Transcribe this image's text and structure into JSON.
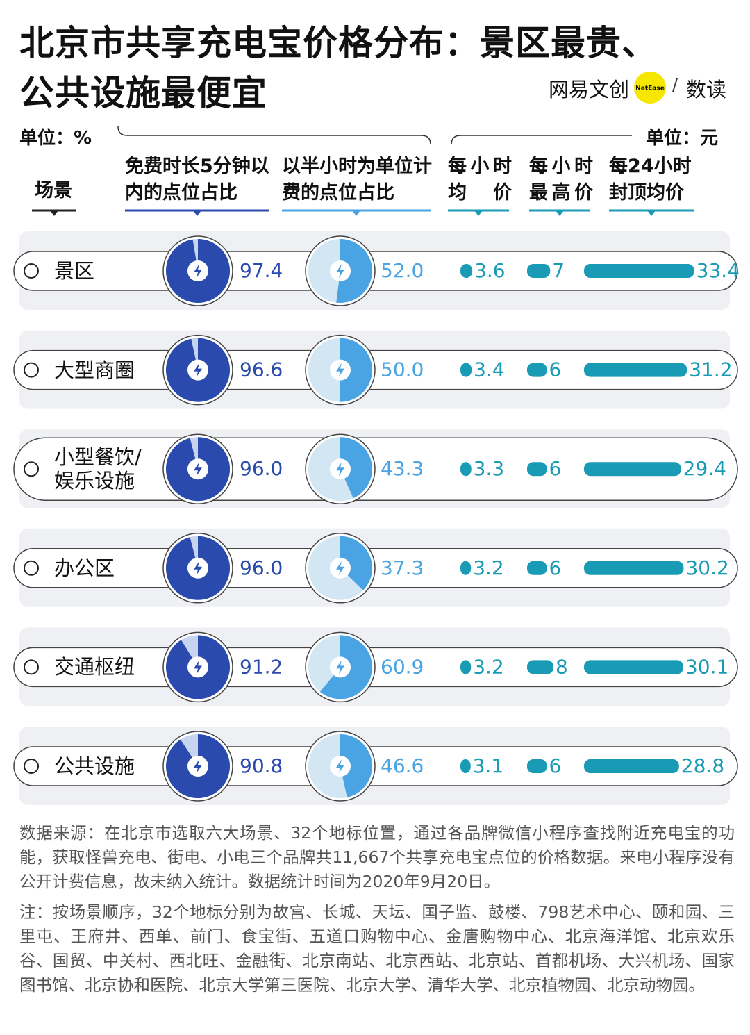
{
  "title": [
    "北京市共享充电宝价格分布：景区最贵、",
    "公共设施最便宜"
  ],
  "logo": {
    "left": "网易文创",
    "badge": "NetEase",
    "separator": "/",
    "right": "数读"
  },
  "chart_data": {
    "type": "pie-bar-table",
    "unit_left": "单位：%",
    "unit_right": "单位：元",
    "category_header": "场景",
    "categories": [
      "景区",
      "大型商圈",
      "小型餐饮/娱乐设施",
      "办公区",
      "交通枢纽",
      "公共设施"
    ],
    "series": [
      {
        "name": "免费时长5分钟以内的点位占比",
        "kind": "pie",
        "color": "#2a4aad",
        "rest_color": "#c7d4f0",
        "values": [
          97.4,
          96.6,
          96.0,
          96.0,
          91.2,
          90.8
        ],
        "value_labels": [
          "97.4",
          "96.6",
          "96.0",
          "96.0",
          "91.2",
          "90.8"
        ]
      },
      {
        "name": "以半小时为单位计费的点位占比",
        "kind": "pie",
        "color": "#4aa3e3",
        "rest_color": "#d3e6f3",
        "values": [
          52.0,
          50.0,
          43.3,
          37.3,
          60.9,
          46.6
        ],
        "value_labels": [
          "52.0",
          "50.0",
          "43.3",
          "37.3",
          "60.9",
          "46.6"
        ]
      },
      {
        "name": "每小时均价",
        "kind": "bar",
        "color": "#1a9bb5",
        "values": [
          3.6,
          3.4,
          3.3,
          3.2,
          3.2,
          3.1
        ],
        "value_labels": [
          "3.6",
          "3.4",
          "3.3",
          "3.2",
          "3.2",
          "3.1"
        ]
      },
      {
        "name": "每小时最高价",
        "kind": "bar",
        "color": "#1a9bb5",
        "values": [
          7,
          6,
          6,
          6,
          8,
          6
        ],
        "value_labels": [
          "7",
          "6",
          "6",
          "6",
          "8",
          "6"
        ]
      },
      {
        "name": "每24小时封顶均价",
        "kind": "bar",
        "color": "#1a9bb5",
        "values": [
          33.4,
          31.2,
          29.4,
          30.2,
          30.1,
          28.8
        ],
        "value_labels": [
          "33.4",
          "31.2",
          "29.4",
          "30.2",
          "30.1",
          "28.8"
        ]
      }
    ]
  },
  "footer": {
    "source": "数据来源：在北京市选取六大场景、32个地标位置，通过各品牌微信小程序查找附近充电宝的功能，获取怪兽充电、街电、小电三个品牌共11,667个共享充电宝点位的价格数据。来电小程序没有公开计费信息，故未纳入统计。数据统计时间为2020年9月20日。",
    "note": "注：按场景顺序，32个地标分别为故宫、长城、天坛、国子监、鼓楼、798艺术中心、颐和园、三里屯、王府井、西单、前门、食宝街、五道口购物中心、金唐购物中心、北京海洋馆、北京欢乐谷、国贸、中关村、西北旺、金融街、北京南站、北京西站、北京站、首都机场、大兴机场、国家图书馆、北京协和医院、北京大学第三医院、北京大学、清华大学、北京植物园、北京动物园。"
  }
}
